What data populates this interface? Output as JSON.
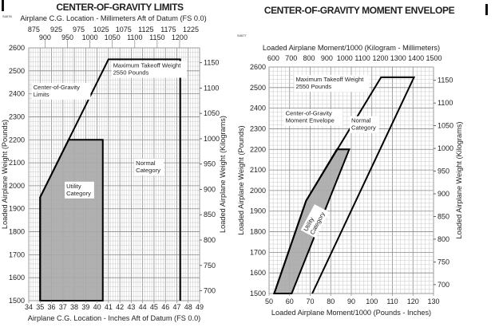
{
  "chart_data": [
    {
      "type": "area",
      "title": "CENTER-OF-GRAVITY LIMITS",
      "figure_id": "S4078",
      "xlabel": "Airplane C.G. Location - Inches Aft of Datum (FS 0.0)",
      "ylabel": "Loaded Airplane Weight (Pounds)",
      "x2label": "Airplane C.G. Location - Millimeters Aft of Datum (FS 0.0)",
      "y2label": "Loaded Airplane Weight (Kilograms)",
      "xlim": [
        34,
        49
      ],
      "ylim": [
        1500,
        2600
      ],
      "grid": true,
      "x_ticks": [
        "34",
        "35",
        "36",
        "37",
        "38",
        "39",
        "40",
        "41",
        "42",
        "43",
        "44",
        "45",
        "46",
        "47",
        "48",
        "49"
      ],
      "y_ticks": [
        "1500",
        "1600",
        "1700",
        "1800",
        "1900",
        "2000",
        "2100",
        "2200",
        "2300",
        "2400",
        "2500",
        "2600"
      ],
      "x2_ticks_upper": [
        "875",
        "925",
        "975",
        "1025",
        "1075",
        "1125",
        "1175",
        "1225"
      ],
      "x2_ticks_lower": [
        "900",
        "950",
        "1000",
        "1050",
        "1100",
        "1150",
        "1200"
      ],
      "y2_ticks": [
        "700",
        "750",
        "800",
        "850",
        "900",
        "950",
        "1000",
        "1050",
        "1100",
        "1150"
      ],
      "series": [
        {
          "name": "Normal Category",
          "points": [
            [
              35,
              1500
            ],
            [
              35,
              1950
            ],
            [
              41,
              2550
            ],
            [
              47.3,
              2550
            ],
            [
              47.3,
              1500
            ]
          ],
          "fill": "none"
        },
        {
          "name": "Utility Category",
          "points": [
            [
              35,
              1500
            ],
            [
              35,
              1950
            ],
            [
              37.5,
              2200
            ],
            [
              40.5,
              2200
            ],
            [
              40.5,
              1500
            ]
          ],
          "fill": "#a9a9a9"
        }
      ],
      "annotations": [
        {
          "text": [
            "Maximum Takeoff Weight",
            "2550 Pounds"
          ],
          "at": [
            41.4,
            2515
          ]
        },
        {
          "text": [
            "Center-of-Gravity",
            "Limits"
          ],
          "at": [
            34.4,
            2420
          ]
        },
        {
          "text": [
            "Normal",
            "Category"
          ],
          "at": [
            43.4,
            2090
          ]
        },
        {
          "text": [
            "Utility",
            "Category"
          ],
          "at": [
            37.3,
            1990
          ]
        }
      ]
    },
    {
      "type": "area",
      "title": "CENTER-OF-GRAVITY MOMENT ENVELOPE",
      "figure_id": "S4077",
      "xlabel": "Loaded Airplane Moment/1000 (Pounds - Inches)",
      "ylabel": "Loaded Airplane Weight (Pounds)",
      "x2label": "Loaded Airplane Moment/1000 (Kilogram - Millimeters)",
      "y2label": "Loaded Airplane Weight (Kilograms)",
      "xlim": [
        50,
        130
      ],
      "ylim": [
        1500,
        2600
      ],
      "grid": true,
      "x_ticks": [
        "50",
        "60",
        "70",
        "80",
        "90",
        "100",
        "110",
        "120",
        "130"
      ],
      "y_ticks": [
        "1500",
        "1600",
        "1700",
        "1800",
        "1900",
        "2000",
        "2100",
        "2200",
        "2300",
        "2400",
        "2500",
        "2600"
      ],
      "x2_ticks": [
        "600",
        "700",
        "800",
        "900",
        "1000",
        "1100",
        "1200",
        "1300",
        "1400",
        "1500"
      ],
      "y2_ticks": [
        "700",
        "750",
        "800",
        "850",
        "900",
        "950",
        "1000",
        "1050",
        "1100",
        "1150"
      ],
      "series": [
        {
          "name": "Normal Category",
          "points": [
            [
              52.5,
              1500
            ],
            [
              68,
              1950
            ],
            [
              104.5,
              2550
            ],
            [
              120.5,
              2550
            ],
            [
              71,
              1500
            ]
          ],
          "fill": "none"
        },
        {
          "name": "Utility Category",
          "points": [
            [
              52.5,
              1500
            ],
            [
              68,
              1950
            ],
            [
              83,
              2200
            ],
            [
              89,
              2200
            ],
            [
              61,
              1500
            ]
          ],
          "fill": "#a9a9a9"
        }
      ],
      "annotations": [
        {
          "text": [
            "Maximum Takeoff Weight",
            "2550 Pounds"
          ],
          "at": [
            63,
            2530
          ]
        },
        {
          "text": [
            "Center-of-Gravity",
            "Moment Envelope"
          ],
          "at": [
            58,
            2365
          ]
        },
        {
          "text": [
            "Normal",
            "Category"
          ],
          "at": [
            90,
            2330
          ]
        },
        {
          "text": [
            "Utility",
            "Category"
          ],
          "at": [
            68.5,
            1800
          ],
          "rotate": -62
        }
      ]
    }
  ]
}
